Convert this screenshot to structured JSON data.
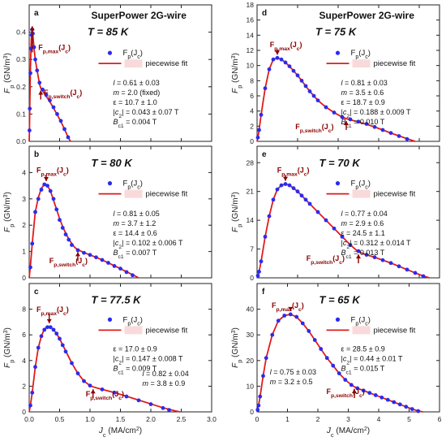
{
  "colors": {
    "marker": "#2B2BEF",
    "fit": "#E01B1B",
    "annotation": "#8B0000",
    "legend_box": "#F9DADA",
    "axis": "#222222"
  },
  "chart_data": [
    {
      "type": "scatter",
      "panel": "a",
      "title": "T = 85 K",
      "header": "SuperPower 2G-wire",
      "xlabel": "",
      "ylabel": "F_p (GN/m^3)",
      "xlim": [
        0,
        3.0
      ],
      "ylim": [
        0,
        0.5
      ],
      "xticks": [
        0,
        0.5,
        1.0,
        1.5,
        2.0,
        2.5,
        3.0
      ],
      "yticks": [
        0.0,
        0.1,
        0.2,
        0.3,
        0.4
      ],
      "series": [
        {
          "name": "F_p(J_c)",
          "kind": "markers",
          "x": [
            0.005,
            0.01,
            0.02,
            0.03,
            0.04,
            0.05,
            0.06,
            0.08,
            0.1,
            0.13,
            0.17,
            0.22,
            0.28,
            0.34,
            0.4,
            0.46,
            0.52,
            0.58,
            0.64
          ],
          "y": [
            0.04,
            0.12,
            0.25,
            0.34,
            0.39,
            0.41,
            0.395,
            0.345,
            0.3,
            0.26,
            0.215,
            0.19,
            0.17,
            0.15,
            0.125,
            0.1,
            0.075,
            0.045,
            0.015
          ]
        },
        {
          "name": "piecewise fit",
          "kind": "line",
          "x": [
            0.0,
            0.005,
            0.01,
            0.02,
            0.03,
            0.04,
            0.05,
            0.06,
            0.08,
            0.1,
            0.13,
            0.17,
            0.19,
            0.22,
            0.28,
            0.34,
            0.4,
            0.46,
            0.52,
            0.58,
            0.64,
            0.68
          ],
          "y": [
            0.0,
            0.05,
            0.13,
            0.26,
            0.35,
            0.4,
            0.41,
            0.39,
            0.34,
            0.3,
            0.26,
            0.21,
            0.195,
            0.185,
            0.165,
            0.145,
            0.122,
            0.098,
            0.073,
            0.045,
            0.015,
            0.0
          ]
        }
      ],
      "annotations": [
        {
          "text": "F_p,max(J_c)",
          "x": 0.05,
          "y": 0.41
        },
        {
          "text": "F_p,switch(J_c)",
          "x": 0.19,
          "y": 0.195
        }
      ],
      "params": [
        "l = 0.61 ± 0.03",
        "m = 2.0 (fixed)",
        "ε = 10.7 ± 1.0",
        "|c2| = 0.043 ± 0.07 T",
        "Bc1 = 0.004 T"
      ]
    },
    {
      "type": "scatter",
      "panel": "b",
      "title": "T = 80 K",
      "xlabel": "",
      "ylabel": "F_p (GN/m^3)",
      "xlim": [
        0,
        3.0
      ],
      "ylim": [
        0,
        5
      ],
      "xticks": [
        0,
        0.5,
        1.0,
        1.5,
        2.0,
        2.5,
        3.0
      ],
      "yticks": [
        0,
        1,
        2,
        3,
        4
      ],
      "series": [
        {
          "name": "F_p(J_c)",
          "kind": "markers",
          "x": [
            0.02,
            0.05,
            0.1,
            0.15,
            0.2,
            0.25,
            0.3,
            0.35,
            0.4,
            0.45,
            0.5,
            0.55,
            0.6,
            0.65,
            0.7,
            0.8,
            0.9,
            1.0,
            1.1,
            1.2,
            1.3,
            1.4,
            1.5,
            1.6,
            1.7
          ],
          "y": [
            0.4,
            1.3,
            2.5,
            3.0,
            3.35,
            3.55,
            3.5,
            3.3,
            3.0,
            2.6,
            2.2,
            1.9,
            1.65,
            1.45,
            1.25,
            1.05,
            0.95,
            0.87,
            0.78,
            0.68,
            0.57,
            0.45,
            0.35,
            0.22,
            0.1
          ]
        },
        {
          "name": "piecewise fit",
          "kind": "line",
          "x": [
            0.0,
            0.02,
            0.05,
            0.1,
            0.15,
            0.2,
            0.25,
            0.3,
            0.35,
            0.4,
            0.45,
            0.5,
            0.55,
            0.6,
            0.65,
            0.7,
            0.75,
            0.8,
            0.9,
            1.0,
            1.1,
            1.2,
            1.3,
            1.4,
            1.5,
            1.6,
            1.7,
            1.8
          ],
          "y": [
            0.0,
            0.45,
            1.3,
            2.5,
            3.05,
            3.4,
            3.55,
            3.5,
            3.3,
            2.95,
            2.6,
            2.25,
            1.95,
            1.7,
            1.48,
            1.3,
            1.15,
            1.07,
            0.96,
            0.87,
            0.78,
            0.68,
            0.57,
            0.46,
            0.35,
            0.23,
            0.12,
            0.0
          ]
        }
      ],
      "annotations": [
        {
          "text": "F_p,max(J_c)",
          "x": 0.28,
          "y": 3.55
        },
        {
          "text": "F_p,switch(J_c)",
          "x": 0.8,
          "y": 1.07
        }
      ],
      "params": [
        "l = 0.81 ± 0.05",
        "m = 3.7 ± 1.2",
        "ε = 14.4 ± 0.6",
        "|c2| = 0.102 ± 0.006 T",
        "Bc1 = 0.007 T"
      ]
    },
    {
      "type": "scatter",
      "panel": "c",
      "title": "T = 77.5 K",
      "xlabel": "J_c (MA/cm^2)",
      "ylabel": "F_p (GN/m^3)",
      "xlim": [
        0,
        3.0
      ],
      "ylim": [
        0,
        10
      ],
      "xticks": [
        0,
        0.5,
        1.0,
        1.5,
        2.0,
        2.5,
        3.0
      ],
      "xtick_labels": [
        "0.0",
        "0.5",
        "1.0",
        "1.5",
        "2.0",
        "2.5",
        "3.0"
      ],
      "yticks": [
        0,
        2,
        4,
        6,
        8
      ],
      "series": [
        {
          "name": "F_p(J_c)",
          "kind": "markers",
          "x": [
            0.02,
            0.05,
            0.1,
            0.15,
            0.2,
            0.25,
            0.3,
            0.35,
            0.4,
            0.45,
            0.5,
            0.55,
            0.6,
            0.7,
            0.8,
            0.9,
            1.0,
            1.2,
            1.4,
            1.6,
            1.8,
            2.0,
            2.2,
            2.3
          ],
          "y": [
            0.5,
            1.5,
            3.5,
            5.0,
            5.9,
            6.4,
            6.6,
            6.6,
            6.4,
            6.1,
            5.7,
            5.2,
            4.7,
            3.8,
            3.0,
            2.4,
            2.05,
            1.75,
            1.5,
            1.2,
            0.9,
            0.6,
            0.3,
            0.15
          ]
        },
        {
          "name": "piecewise fit",
          "kind": "line",
          "x": [
            0.0,
            0.02,
            0.05,
            0.1,
            0.15,
            0.2,
            0.25,
            0.3,
            0.35,
            0.4,
            0.45,
            0.5,
            0.6,
            0.7,
            0.8,
            0.9,
            1.0,
            1.05,
            1.2,
            1.4,
            1.6,
            1.8,
            2.0,
            2.2,
            2.4,
            2.48
          ],
          "y": [
            0.0,
            0.5,
            1.5,
            3.5,
            5.0,
            5.9,
            6.45,
            6.65,
            6.6,
            6.4,
            6.1,
            5.7,
            4.75,
            3.8,
            3.0,
            2.4,
            2.05,
            1.95,
            1.75,
            1.5,
            1.22,
            0.92,
            0.62,
            0.32,
            0.08,
            0.0
          ]
        }
      ],
      "annotations": [
        {
          "text": "F_p,max(J_c)",
          "x": 0.33,
          "y": 6.65
        },
        {
          "text": "F_p,switch(J_c)",
          "x": 1.05,
          "y": 1.95
        }
      ],
      "params": [
        "ε = 17.0 ± 0.9",
        "|c2| = 0.147 ± 0.008 T",
        "Bc1 = 0.009 T",
        "l = 0.82 ± 0.04",
        "m = 3.8 ± 0.9"
      ]
    },
    {
      "type": "scatter",
      "panel": "d",
      "title": "T = 75 K",
      "header": "SuperPower 2G-wire",
      "xlabel": "",
      "ylabel": "F_p (GN/m^3)",
      "xlim": [
        0,
        4.5
      ],
      "ylim": [
        0,
        18
      ],
      "xticks": [
        0,
        1,
        2,
        3,
        4
      ],
      "yticks": [
        0,
        2,
        4,
        6,
        8,
        10,
        12,
        14,
        16,
        18
      ],
      "series": [
        {
          "name": "F_p(J_c)",
          "kind": "markers",
          "x": [
            0.02,
            0.05,
            0.1,
            0.2,
            0.3,
            0.4,
            0.5,
            0.6,
            0.7,
            0.8,
            0.9,
            1.0,
            1.1,
            1.2,
            1.3,
            1.4,
            1.5,
            1.7,
            1.9,
            2.1,
            2.3,
            2.5,
            2.7,
            2.9,
            3.1,
            3.3,
            3.5,
            3.7
          ],
          "y": [
            0.5,
            1.5,
            3.5,
            7.0,
            9.5,
            10.8,
            11.0,
            10.8,
            10.4,
            9.9,
            9.3,
            8.7,
            8.0,
            7.3,
            6.6,
            6.0,
            5.4,
            4.5,
            3.8,
            3.2,
            2.9,
            2.6,
            2.3,
            1.9,
            1.5,
            1.1,
            0.7,
            0.3
          ]
        },
        {
          "name": "piecewise fit",
          "kind": "line",
          "x": [
            0.0,
            0.02,
            0.05,
            0.1,
            0.2,
            0.3,
            0.4,
            0.5,
            0.6,
            0.7,
            0.8,
            0.9,
            1.0,
            1.1,
            1.2,
            1.3,
            1.4,
            1.5,
            1.7,
            1.9,
            2.1,
            2.2,
            2.3,
            2.5,
            2.7,
            2.9,
            3.1,
            3.3,
            3.5,
            3.7,
            3.9
          ],
          "y": [
            0.0,
            0.5,
            1.5,
            3.5,
            7.0,
            9.5,
            10.8,
            11.0,
            10.8,
            10.4,
            9.9,
            9.3,
            8.7,
            8.0,
            7.3,
            6.6,
            6.0,
            5.4,
            4.5,
            3.8,
            3.2,
            3.0,
            2.85,
            2.55,
            2.25,
            1.9,
            1.5,
            1.1,
            0.72,
            0.35,
            0.0
          ]
        }
      ],
      "annotations": [
        {
          "text": "F_p,max(J_c)",
          "x": 0.5,
          "y": 11.0
        },
        {
          "text": "F_p,switch(J_c)",
          "x": 2.2,
          "y": 3.0
        }
      ],
      "params": [
        "l = 0.81 ± 0.03",
        "m = 3.5 ± 0.6",
        "ε = 18.7 ± 0.9",
        "|c2| = 0.188 ± 0.009 T",
        "Bc1 = 0.010 T"
      ]
    },
    {
      "type": "scatter",
      "panel": "e",
      "title": "T = 70 K",
      "xlabel": "",
      "ylabel": "F_p (GN/m^3)",
      "xlim": [
        0,
        4.5
      ],
      "ylim": [
        0,
        32
      ],
      "xticks": [
        0,
        1,
        2,
        3,
        4
      ],
      "yticks": [
        0,
        7,
        14,
        21,
        28
      ],
      "series": [
        {
          "name": "F_p(J_c)",
          "kind": "markers",
          "x": [
            0.02,
            0.05,
            0.1,
            0.2,
            0.3,
            0.4,
            0.5,
            0.6,
            0.7,
            0.8,
            0.9,
            1.0,
            1.1,
            1.2,
            1.3,
            1.5,
            1.7,
            1.9,
            2.1,
            2.3,
            2.5,
            2.7,
            2.9,
            3.1,
            3.3,
            3.5,
            3.7,
            3.9,
            4.1
          ],
          "y": [
            0.5,
            1.5,
            4.0,
            10.0,
            15.0,
            19.0,
            21.5,
            22.5,
            22.8,
            22.5,
            21.8,
            21.0,
            20.0,
            19.0,
            18.0,
            16.0,
            14.0,
            12.0,
            10.0,
            8.0,
            6.5,
            5.6,
            5.0,
            4.3,
            3.6,
            2.8,
            2.0,
            1.2,
            0.4
          ]
        },
        {
          "name": "piecewise fit",
          "kind": "line",
          "x": [
            0.0,
            0.02,
            0.05,
            0.1,
            0.2,
            0.3,
            0.4,
            0.5,
            0.6,
            0.7,
            0.8,
            0.9,
            1.0,
            1.1,
            1.2,
            1.3,
            1.5,
            1.7,
            1.9,
            2.1,
            2.3,
            2.5,
            2.7,
            2.9,
            3.1,
            3.3,
            3.5,
            3.7,
            3.9,
            4.1,
            4.25
          ],
          "y": [
            0.0,
            0.5,
            1.5,
            4.0,
            10.0,
            15.0,
            19.0,
            21.5,
            22.5,
            22.8,
            22.5,
            21.8,
            21.0,
            20.0,
            19.0,
            18.0,
            16.0,
            14.0,
            12.0,
            10.0,
            8.0,
            6.3,
            5.6,
            5.0,
            4.3,
            3.6,
            2.8,
            2.0,
            1.2,
            0.45,
            0.0
          ]
        }
      ],
      "annotations": [
        {
          "text": "F_p,max(J_c)",
          "x": 0.7,
          "y": 22.8
        },
        {
          "text": "F_p,switch(J_c)",
          "x": 2.5,
          "y": 6.3
        }
      ],
      "params": [
        "l = 0.77 ± 0.04",
        "m = 2.9 ± 0.6",
        "ε = 24.5 ± 1.1",
        "|c2| = 0.312 ± 0.014 T",
        "Bc1 = 0.013 T"
      ]
    },
    {
      "type": "scatter",
      "panel": "f",
      "title": "T = 65 K",
      "xlabel": "J_c (MA/cm^2)",
      "ylabel": "F_p (GN/m^3)",
      "xlim": [
        0,
        6
      ],
      "ylim": [
        0,
        50
      ],
      "xticks": [
        0,
        1,
        2,
        3,
        4,
        5,
        6
      ],
      "yticks": [
        0,
        10,
        20,
        30,
        40
      ],
      "series": [
        {
          "name": "F_p(J_c)",
          "kind": "markers",
          "x": [
            0.02,
            0.05,
            0.1,
            0.2,
            0.3,
            0.5,
            0.7,
            0.9,
            1.1,
            1.3,
            1.5,
            1.7,
            1.9,
            2.1,
            2.3,
            2.5,
            2.7,
            2.9,
            3.1,
            3.3,
            3.5,
            3.7,
            3.9,
            4.1,
            4.3,
            4.5,
            4.7,
            4.9,
            5.1,
            5.3
          ],
          "y": [
            0.8,
            2.5,
            6.0,
            14.0,
            21.0,
            30.0,
            35.5,
            37.5,
            38.0,
            37.0,
            34.5,
            31.5,
            28.0,
            24.5,
            21.0,
            18.0,
            15.0,
            12.5,
            10.5,
            9.2,
            8.3,
            7.4,
            6.5,
            5.6,
            4.7,
            3.8,
            2.9,
            2.0,
            1.1,
            0.3
          ]
        },
        {
          "name": "piecewise fit",
          "kind": "line",
          "x": [
            0.0,
            0.02,
            0.05,
            0.1,
            0.2,
            0.3,
            0.5,
            0.7,
            0.9,
            1.1,
            1.3,
            1.5,
            1.7,
            1.9,
            2.1,
            2.3,
            2.5,
            2.7,
            2.9,
            3.1,
            3.2,
            3.3,
            3.5,
            3.7,
            3.9,
            4.1,
            4.3,
            4.5,
            4.7,
            4.9,
            5.1,
            5.3,
            5.45
          ],
          "y": [
            0.0,
            0.8,
            2.5,
            6.0,
            14.0,
            21.0,
            30.0,
            35.5,
            37.5,
            38.0,
            37.0,
            34.5,
            31.5,
            28.0,
            24.5,
            21.0,
            18.0,
            15.0,
            12.5,
            10.5,
            9.8,
            9.2,
            8.3,
            7.4,
            6.5,
            5.6,
            4.7,
            3.8,
            2.9,
            2.0,
            1.1,
            0.35,
            0.0
          ]
        }
      ],
      "annotations": [
        {
          "text": "F_p,max(J_c)",
          "x": 1.1,
          "y": 38.0
        },
        {
          "text": "F_p,switch(J_c)",
          "x": 3.2,
          "y": 9.8
        }
      ],
      "params": [
        "ε = 28.5 ± 0.9",
        "|c2| = 0.44 ± 0.01 T",
        "Bc1 = 0.015 T",
        "l = 0.75 ± 0.03",
        "m = 3.2 ± 0.5"
      ]
    }
  ]
}
